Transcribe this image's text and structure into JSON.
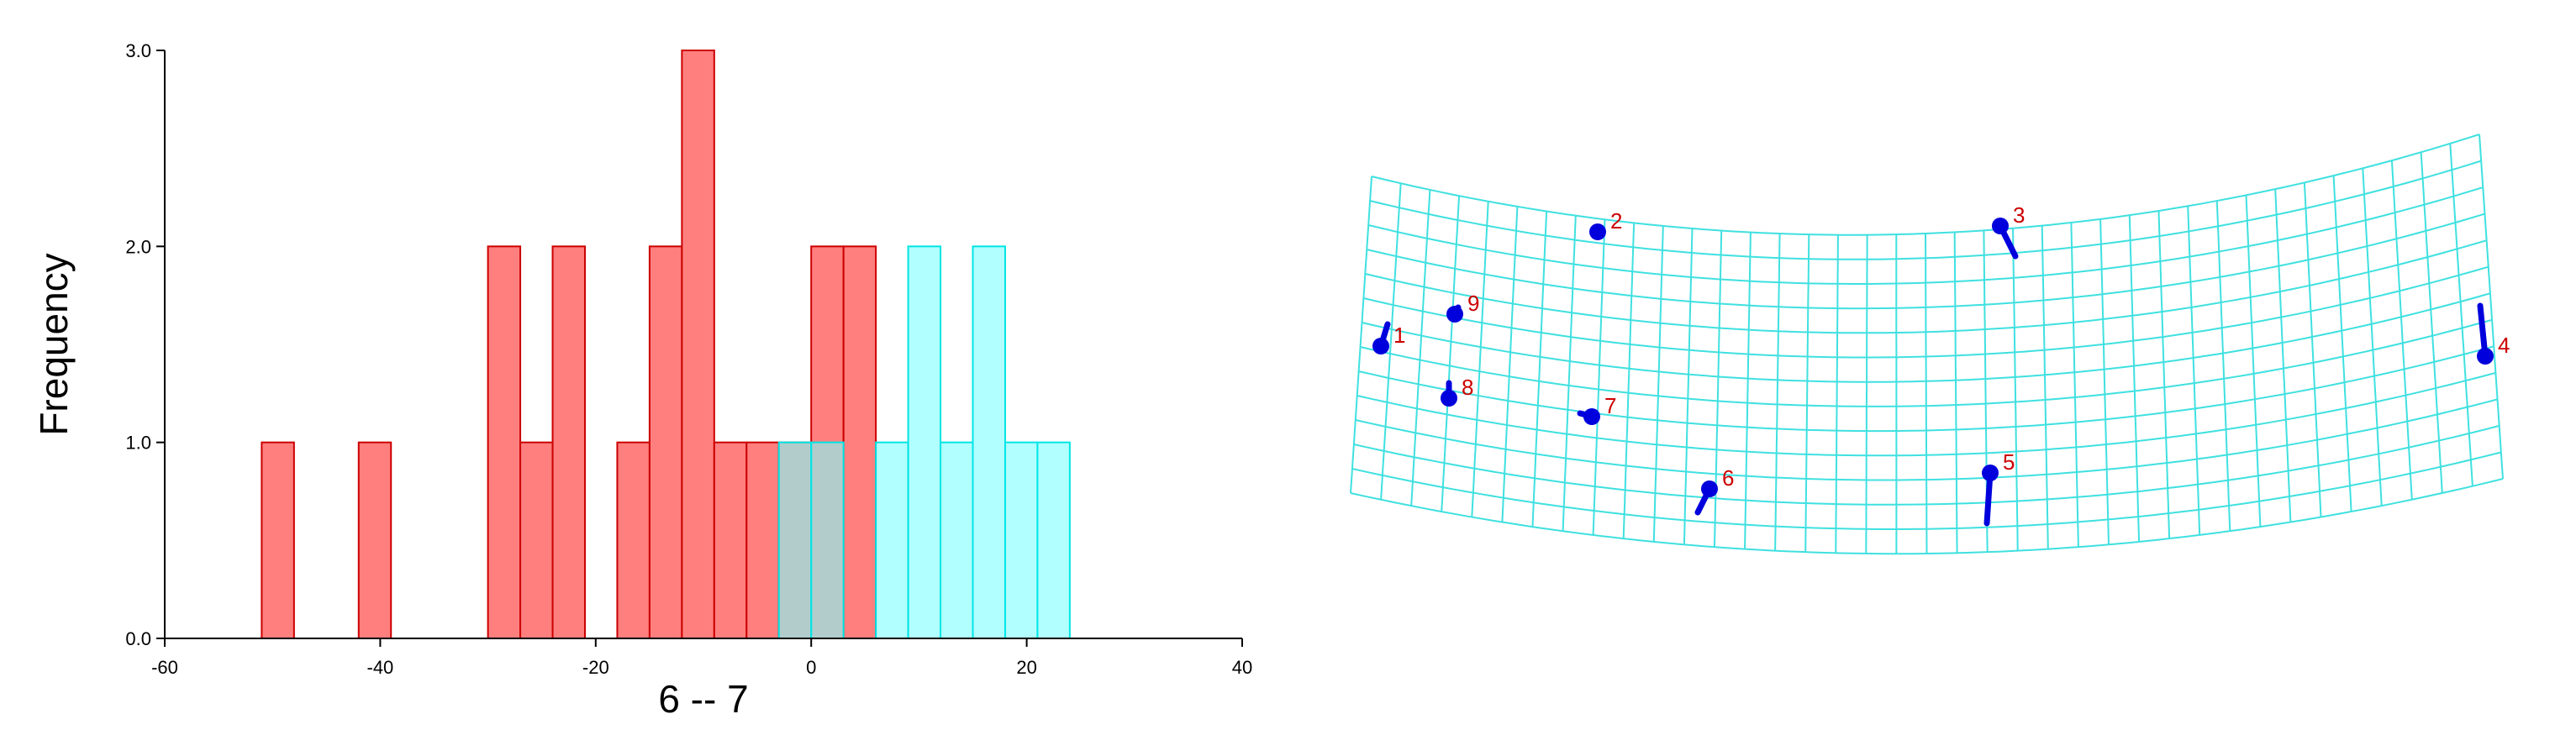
{
  "chart_data": [
    {
      "type": "histogram",
      "xlabel": "6 -- 7",
      "ylabel": "Frequency",
      "xlim": [
        -60,
        40
      ],
      "ylim": [
        0,
        3
      ],
      "xticks": [
        "-60",
        "-40",
        "-20",
        "0",
        "20",
        "40"
      ],
      "yticks": [
        "0.0",
        "1.0",
        "2.0",
        "3.0"
      ],
      "bin_width": 3,
      "grid": false,
      "series": [
        {
          "color": "#ff7f7f",
          "edge_color": "#cc0000",
          "bins": [
            {
              "x0": -51,
              "x1": -48,
              "count": 1
            },
            {
              "x0": -42,
              "x1": -39,
              "count": 1
            },
            {
              "x0": -30,
              "x1": -27,
              "count": 2
            },
            {
              "x0": -27,
              "x1": -24,
              "count": 1
            },
            {
              "x0": -24,
              "x1": -21,
              "count": 2
            },
            {
              "x0": -18,
              "x1": -15,
              "count": 1
            },
            {
              "x0": -15,
              "x1": -12,
              "count": 2
            },
            {
              "x0": -12,
              "x1": -9,
              "count": 3
            },
            {
              "x0": -9,
              "x1": -6,
              "count": 1
            },
            {
              "x0": -6,
              "x1": -3,
              "count": 1
            },
            {
              "x0": -3,
              "x1": 0,
              "count": 1
            },
            {
              "x0": 0,
              "x1": 3,
              "count": 2
            },
            {
              "x0": 3,
              "x1": 6,
              "count": 2
            }
          ]
        },
        {
          "color": "#7fffff",
          "edge_color": "#00e5e5",
          "bins": [
            {
              "x0": -3,
              "x1": 0,
              "count": 1
            },
            {
              "x0": 0,
              "x1": 3,
              "count": 1
            },
            {
              "x0": 6,
              "x1": 9,
              "count": 1
            },
            {
              "x0": 9,
              "x1": 12,
              "count": 2
            },
            {
              "x0": 12,
              "x1": 15,
              "count": 1
            },
            {
              "x0": 15,
              "x1": 18,
              "count": 2
            },
            {
              "x0": 18,
              "x1": 21,
              "count": 1
            },
            {
              "x0": 21,
              "x1": 24,
              "count": 1
            }
          ]
        }
      ]
    },
    {
      "type": "deformation-grid",
      "grid_color": "#40e0e0",
      "landmark_color": "#0000dd",
      "label_color": "#cc0000",
      "landmarks": [
        {
          "label": "1"
        },
        {
          "label": "2"
        },
        {
          "label": "3"
        },
        {
          "label": "4"
        },
        {
          "label": "5"
        },
        {
          "label": "6"
        },
        {
          "label": "7"
        },
        {
          "label": "8"
        },
        {
          "label": "9"
        }
      ]
    }
  ]
}
